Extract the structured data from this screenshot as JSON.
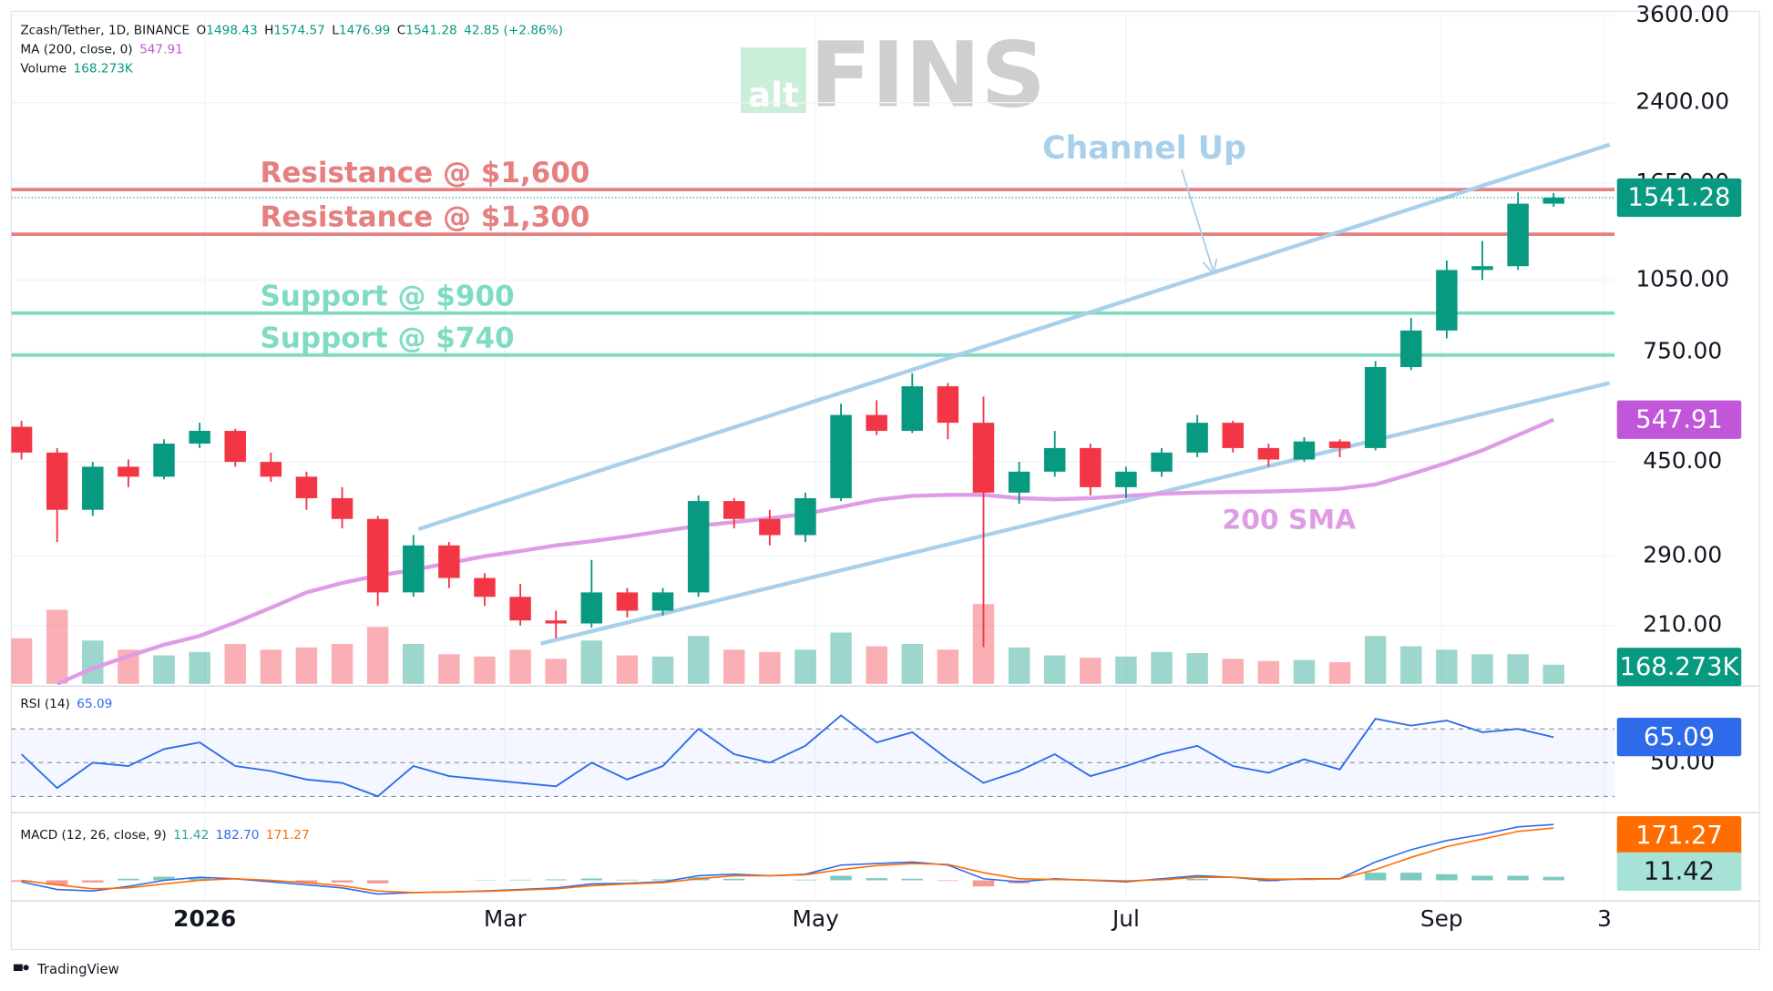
{
  "chart_data": {
    "type": "candlestick",
    "title": "Zcash/Tether, 1D, BINANCE",
    "ohlc_labels": [
      "O",
      "H",
      "L",
      "C"
    ],
    "change_label": "42.85 (+2.86%)",
    "x": [
      "2025-11-26",
      "2025-12-03",
      "2025-12-10",
      "2025-12-17",
      "2025-12-24",
      "2025-12-31",
      "2026-01-07",
      "2026-01-14",
      "2026-01-21",
      "2026-01-28",
      "2026-02-04",
      "2026-02-11",
      "2026-02-18",
      "2026-02-25",
      "2026-03-04",
      "2026-03-11",
      "2026-03-18",
      "2026-03-25",
      "2026-04-01",
      "2026-04-08",
      "2026-04-15",
      "2026-04-22",
      "2026-04-29",
      "2026-05-06",
      "2026-05-13",
      "2026-05-20",
      "2026-05-27",
      "2026-06-03",
      "2026-06-10",
      "2026-06-17",
      "2026-06-24",
      "2026-07-01",
      "2026-07-08",
      "2026-07-15",
      "2026-07-22",
      "2026-07-29",
      "2026-08-05",
      "2026-08-12",
      "2026-08-19",
      "2026-08-26",
      "2026-09-02",
      "2026-09-09",
      "2026-09-16",
      "2026-09-23"
    ],
    "open": [
      530,
      470,
      360,
      440,
      420,
      490,
      520,
      450,
      420,
      380,
      345,
      245,
      305,
      262,
      240,
      215,
      212,
      245,
      225,
      245,
      375,
      345,
      320,
      380,
      560,
      520,
      640,
      540,
      390,
      430,
      480,
      400,
      430,
      470,
      540,
      480,
      455,
      495,
      480,
      700,
      830,
      1100,
      1120,
      1498.43
    ],
    "high": [
      545,
      480,
      450,
      455,
      500,
      540,
      525,
      470,
      430,
      400,
      350,
      320,
      310,
      268,
      255,
      225,
      285,
      250,
      250,
      385,
      380,
      360,
      390,
      590,
      600,
      680,
      650,
      610,
      450,
      520,
      490,
      440,
      480,
      560,
      545,
      490,
      505,
      500,
      720,
      880,
      1150,
      1260,
      1580,
      1574.57
    ],
    "low": [
      455,
      310,
      350,
      400,
      415,
      480,
      440,
      410,
      360,
      330,
      230,
      240,
      250,
      230,
      210,
      198,
      208,
      218,
      220,
      240,
      330,
      305,
      310,
      375,
      510,
      515,
      500,
      190,
      370,
      420,
      385,
      380,
      420,
      460,
      470,
      440,
      450,
      460,
      475,
      690,
      800,
      1050,
      1100,
      1476.99
    ],
    "close": [
      470,
      360,
      440,
      420,
      490,
      520,
      450,
      420,
      380,
      345,
      245,
      305,
      262,
      240,
      215,
      212,
      245,
      225,
      245,
      375,
      345,
      320,
      380,
      560,
      520,
      640,
      540,
      390,
      430,
      480,
      400,
      430,
      470,
      540,
      480,
      455,
      495,
      480,
      700,
      830,
      1100,
      1120,
      1498.43,
      1541.28
    ],
    "color_up": "#089981",
    "color_down": "#f23645",
    "log": true,
    "ylim": [
      160,
      3870
    ],
    "yticks": [
      {
        "value": 3600,
        "label": "3600.00"
      },
      {
        "value": 2400,
        "label": "2400.00"
      },
      {
        "value": 1650,
        "label": "1650.00"
      },
      {
        "value": 1050,
        "label": "1050.00"
      },
      {
        "value": 750,
        "label": "750.00"
      },
      {
        "value": 450,
        "label": "450.00"
      },
      {
        "value": 290,
        "label": "290.00"
      },
      {
        "value": 210,
        "label": "210.00"
      }
    ],
    "grid": true,
    "xlim": [
      "2025-11-24",
      "2026-10-05"
    ],
    "xticks": [
      {
        "value": "2026-01-01",
        "label": "2026"
      },
      {
        "value": "2026-03-01",
        "label": "Mar"
      },
      {
        "value": "2026-05-01",
        "label": "May"
      },
      {
        "value": "2026-07-01",
        "label": "Jul"
      },
      {
        "value": "2026-09-01",
        "label": "Sep"
      },
      {
        "value": "2026-10-03",
        "label": "3"
      }
    ],
    "ma": {
      "name": "MA (200, close, 0)",
      "color": "#df9ce6",
      "label": "200 SMA",
      "values": [
        null,
        160,
        172,
        182,
        192,
        200,
        213,
        228,
        245,
        256,
        265,
        272,
        281,
        290,
        297,
        305,
        311,
        318,
        326,
        334,
        340,
        346,
        353,
        365,
        377,
        384,
        386,
        386,
        380,
        378,
        380,
        384,
        388,
        390,
        391,
        392,
        394,
        397,
        405,
        425,
        448,
        475,
        510,
        547.91
      ]
    },
    "volume": {
      "name": "Volume",
      "ylim": [
        0,
        6000
      ],
      "last_label": "168.273K",
      "values": [
        400,
        650,
        380,
        300,
        250,
        280,
        350,
        300,
        320,
        350,
        500,
        350,
        260,
        240,
        300,
        220,
        380,
        250,
        240,
        420,
        300,
        280,
        300,
        450,
        330,
        350,
        300,
        700,
        320,
        250,
        230,
        240,
        280,
        270,
        220,
        200,
        210,
        190,
        420,
        330,
        300,
        260,
        260,
        168.273
      ]
    },
    "levels": [
      {
        "label": "Resistance @ $1,600",
        "value": 1600,
        "color": "#e57f80"
      },
      {
        "label": "Resistance @ $1,300",
        "value": 1300,
        "color": "#e57f80"
      },
      {
        "label": "Support @ $900",
        "value": 900,
        "color": "#7fdcc3"
      },
      {
        "label": "Support @ $740",
        "value": 740,
        "color": "#7fdcc3"
      }
    ],
    "channel": {
      "label": "Channel Up",
      "color": "#a9d0ea",
      "lines": [
        {
          "x": [
            "2026-02-12",
            "2026-10-04"
          ],
          "y": [
            329,
            1973
          ]
        },
        {
          "x": [
            "2026-03-08",
            "2026-10-04"
          ],
          "y": [
            193,
            650
          ]
        }
      ]
    },
    "rsi": {
      "name": "RSI (14)",
      "color": "#2e6bea",
      "ylim": [
        25,
        92
      ],
      "yticks": [
        {
          "value": 50,
          "label": "50.00"
        }
      ],
      "levels": [
        30,
        50,
        70
      ],
      "values": [
        55,
        35,
        50,
        48,
        58,
        62,
        48,
        45,
        40,
        38,
        30,
        48,
        42,
        40,
        38,
        36,
        50,
        40,
        48,
        70,
        55,
        50,
        60,
        78,
        62,
        68,
        52,
        38,
        45,
        55,
        42,
        48,
        55,
        60,
        48,
        44,
        52,
        46,
        76,
        72,
        75,
        68,
        70,
        65.09
      ]
    },
    "macd": {
      "name": "MACD (12, 26, close, 9)",
      "ylim": [
        -60,
        210
      ],
      "histogram": {
        "color_up": "#26a69a",
        "color_down": "#ef5350",
        "values": [
          -5,
          -15,
          -7,
          5,
          12,
          10,
          0,
          -5,
          -7,
          -7,
          -10,
          0,
          0,
          1,
          2,
          3,
          6,
          2,
          3,
          10,
          5,
          0,
          2,
          15,
          7,
          5,
          -2,
          -20,
          -10,
          2,
          -1,
          -3,
          3,
          5,
          0,
          -4,
          1,
          0,
          25,
          25,
          20,
          15,
          15,
          11.42
        ]
      },
      "macd": {
        "color": "#2e6bea",
        "last_label": "182.70",
        "values": [
          -5,
          -30,
          -35,
          -20,
          0,
          10,
          5,
          -5,
          -15,
          -25,
          -45,
          -40,
          -38,
          -35,
          -30,
          -25,
          -12,
          -10,
          -5,
          15,
          20,
          15,
          20,
          50,
          55,
          60,
          50,
          5,
          -5,
          5,
          0,
          -5,
          5,
          15,
          10,
          0,
          5,
          5,
          60,
          100,
          130,
          150,
          175,
          182.7
        ]
      },
      "signal": {
        "color": "#ff6d00",
        "values": [
          0,
          -15,
          -28,
          -25,
          -12,
          0,
          5,
          0,
          -8,
          -18,
          -35,
          -40,
          -38,
          -36,
          -32,
          -28,
          -18,
          -12,
          -8,
          5,
          15,
          15,
          18,
          35,
          48,
          55,
          52,
          25,
          5,
          3,
          1,
          -2,
          2,
          10,
          10,
          4,
          4,
          5,
          35,
          75,
          110,
          135,
          160,
          171.27
        ]
      }
    }
  },
  "watermark": {
    "left": "alt",
    "right": "FINS"
  },
  "branding": "TradingView"
}
